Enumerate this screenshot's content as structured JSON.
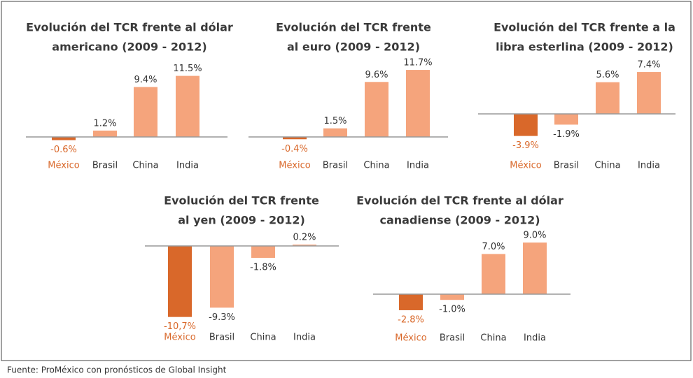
{
  "chart_data": [
    {
      "type": "bar",
      "title": [
        "Evolución del TCR frente al dólar",
        "americano (2009 - 2012)"
      ],
      "categories": [
        "México",
        "Brasil",
        "China",
        "India"
      ],
      "values": [
        -0.6,
        1.2,
        9.4,
        11.5
      ],
      "value_labels": [
        "-0.6%",
        "1.2%",
        "9.4%",
        "11.5%"
      ],
      "colors": [
        "#d9682a",
        "#f5a47c",
        "#f5a47c",
        "#f5a47c"
      ]
    },
    {
      "type": "bar",
      "title": [
        "Evolución del TCR frente",
        "al euro (2009 - 2012)"
      ],
      "categories": [
        "México",
        "Brasil",
        "China",
        "India"
      ],
      "values": [
        -0.4,
        1.5,
        9.6,
        11.7
      ],
      "value_labels": [
        "-0.4%",
        "1.5%",
        "9.6%",
        "11.7%"
      ],
      "colors": [
        "#d9682a",
        "#f5a47c",
        "#f5a47c",
        "#f5a47c"
      ]
    },
    {
      "type": "bar",
      "title": [
        "Evolución del TCR frente a la",
        "libra esterlina (2009 - 2012)"
      ],
      "categories": [
        "México",
        "Brasil",
        "China",
        "India"
      ],
      "values": [
        -3.9,
        -1.9,
        5.6,
        7.4
      ],
      "value_labels": [
        "-3.9%",
        "-1.9%",
        "5.6%",
        "7.4%"
      ],
      "colors": [
        "#d9682a",
        "#f5a47c",
        "#f5a47c",
        "#f5a47c"
      ]
    },
    {
      "type": "bar",
      "title": [
        "Evolución del TCR frente",
        "al yen (2009 - 2012)"
      ],
      "categories": [
        "México",
        "Brasil",
        "China",
        "India"
      ],
      "values": [
        -10.7,
        -9.3,
        -1.8,
        0.2
      ],
      "value_labels": [
        "-10,7%",
        "-9.3%",
        "-1.8%",
        "0.2%"
      ],
      "colors": [
        "#d9682a",
        "#f5a47c",
        "#f5a47c",
        "#f5a47c"
      ]
    },
    {
      "type": "bar",
      "title": [
        "Evolución del TCR frente al dólar",
        "canadiense (2009 - 2012)"
      ],
      "categories": [
        "México",
        "Brasil",
        "China",
        "India"
      ],
      "values": [
        -2.8,
        -1.0,
        7.0,
        9.0
      ],
      "value_labels": [
        "-2.8%",
        "-1.0%",
        "7.0%",
        "9.0%"
      ],
      "colors": [
        "#d9682a",
        "#f5a47c",
        "#f5a47c",
        "#f5a47c"
      ]
    }
  ],
  "source": "Fuente: ProMéxico con pronósticos de Global Insight"
}
